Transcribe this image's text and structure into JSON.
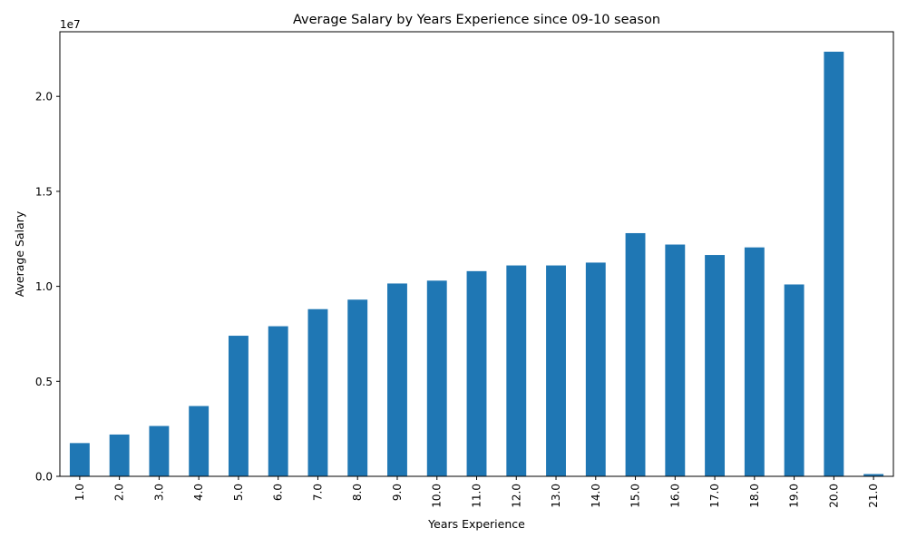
{
  "chart_data": {
    "type": "bar",
    "title": "Average Salary by Years Experience since 09-10 season",
    "xlabel": "Years Experience",
    "ylabel": "Average Salary",
    "y_offset_label": "1e7",
    "categories": [
      "1.0",
      "2.0",
      "3.0",
      "4.0",
      "5.0",
      "6.0",
      "7.0",
      "8.0",
      "9.0",
      "10.0",
      "11.0",
      "12.0",
      "13.0",
      "14.0",
      "15.0",
      "16.0",
      "17.0",
      "18.0",
      "19.0",
      "20.0",
      "21.0"
    ],
    "values": [
      1750000,
      2200000,
      2650000,
      3700000,
      7400000,
      7900000,
      8800000,
      9300000,
      10150000,
      10300000,
      10800000,
      11100000,
      11100000,
      11250000,
      12800000,
      12200000,
      11650000,
      12050000,
      10100000,
      22350000,
      120000
    ],
    "ylim": [
      0,
      23400000
    ],
    "y_ticks": [
      0,
      5000000,
      10000000,
      15000000,
      20000000
    ],
    "y_tick_labels": [
      "0.0",
      "0.5",
      "1.0",
      "1.5",
      "2.0"
    ],
    "bar_color": "#1f77b4",
    "grid": false,
    "legend": "none"
  }
}
